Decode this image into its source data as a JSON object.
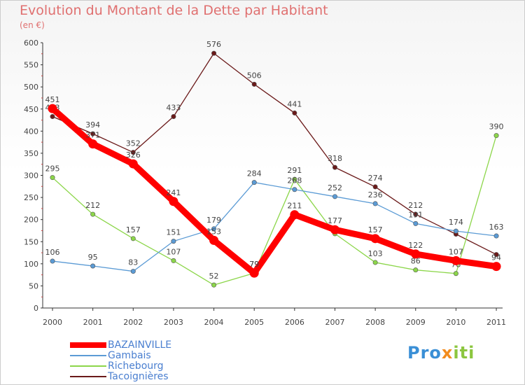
{
  "chart_data": {
    "type": "line",
    "title": "Evolution du Montant de la Dette par Habitant",
    "unit_label": "(en €)",
    "categories": [
      "2000",
      "2001",
      "2002",
      "2003",
      "2004",
      "2005",
      "2006",
      "2007",
      "2008",
      "2009",
      "2010",
      "2011"
    ],
    "ylim": [
      0,
      600
    ],
    "yticks": [
      0,
      50,
      100,
      150,
      200,
      250,
      300,
      350,
      400,
      450,
      500,
      550,
      600
    ],
    "grid": false,
    "legend_position": "bottom-left",
    "series": [
      {
        "name": "Tacoignières",
        "color": "#6b1a1a",
        "width": "thin",
        "values": [
          433,
          394,
          352,
          433,
          576,
          506,
          441,
          318,
          274,
          212,
          167,
          121
        ],
        "labels": [
          "433",
          "394",
          "352",
          "433",
          "576",
          "506",
          "441",
          "318",
          "274",
          "212",
          "",
          ""
        ]
      },
      {
        "name": "Richebourg",
        "color": "#8cd64a",
        "width": "thin",
        "values": [
          295,
          212,
          157,
          107,
          52,
          79,
          291,
          168,
          103,
          86,
          78,
          390
        ],
        "labels": [
          "295",
          "212",
          "157",
          "107",
          "52",
          "79",
          "291",
          "",
          "103",
          "86",
          "78",
          "390"
        ]
      },
      {
        "name": "Gambais",
        "color": "#5b9bd5",
        "width": "thin",
        "values": [
          106,
          95,
          83,
          151,
          179,
          284,
          268,
          252,
          236,
          191,
          174,
          163
        ],
        "labels": [
          "106",
          "95",
          "83",
          "151",
          "179",
          "284",
          "268",
          "252",
          "236",
          "191",
          "174",
          "163"
        ]
      },
      {
        "name": "BAZAINVILLE",
        "color": "#ff0000",
        "width": "thick",
        "values": [
          451,
          371,
          326,
          241,
          153,
          79,
          211,
          177,
          157,
          122,
          107,
          94
        ],
        "labels": [
          "451",
          "371",
          "326",
          "241",
          "153",
          "79",
          "211",
          "177",
          "157",
          "122",
          "107",
          "94"
        ]
      }
    ],
    "legend_order": [
      "BAZAINVILLE",
      "Gambais",
      "Richebourg",
      "Tacoignières"
    ]
  },
  "brand": {
    "part1": "Pro",
    "part2": "x",
    "part3": "iti"
  }
}
